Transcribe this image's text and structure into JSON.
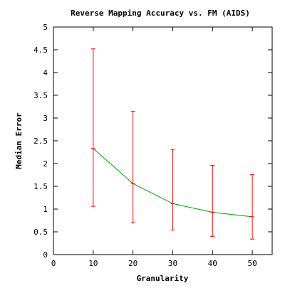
{
  "chart_data": {
    "type": "line",
    "title": "Reverse Mapping Accuracy vs. FM (AIDS)",
    "xlabel": "Granularity",
    "ylabel": "Median Error",
    "xlim": [
      0,
      55
    ],
    "ylim": [
      0,
      5
    ],
    "xticks": [
      0,
      10,
      20,
      30,
      40,
      50
    ],
    "yticks": [
      0,
      0.5,
      1,
      1.5,
      2,
      2.5,
      3,
      3.5,
      4,
      4.5,
      5
    ],
    "xtick_labels": [
      "0",
      "10",
      "20",
      "30",
      "40",
      "50"
    ],
    "ytick_labels": [
      "0",
      "0.5",
      "1",
      "1.5",
      "2",
      "2.5",
      "3",
      "3.5",
      "4",
      "4.5",
      "5"
    ],
    "grid": false,
    "legend": "none",
    "series": [
      {
        "x": [
          10,
          20,
          30,
          40,
          50
        ],
        "y": [
          2.33,
          1.56,
          1.12,
          0.93,
          0.83
        ],
        "y_low": [
          1.06,
          0.7,
          0.54,
          0.4,
          0.34
        ],
        "y_high": [
          4.52,
          3.15,
          2.31,
          1.96,
          1.76
        ],
        "line_color": "#00a000",
        "errorbar_color": "#ff0000"
      }
    ]
  }
}
